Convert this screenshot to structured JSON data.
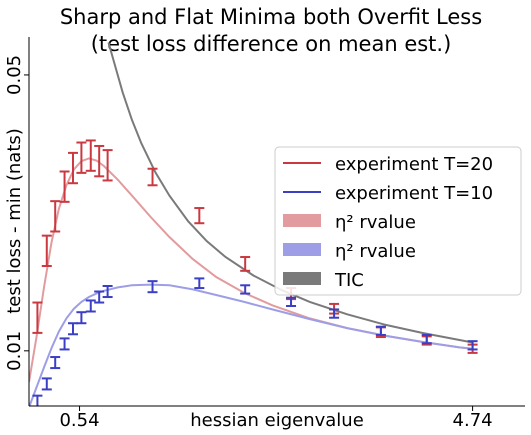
{
  "chart_data": {
    "type": "line",
    "title": "Sharp and Flat Minima both Overfit Less",
    "subtitle": "(test loss difference on mean est.)",
    "xlabel": "hessian eigenvalue",
    "ylabel": "test loss - min (nats)",
    "xlim": [
      0.0,
      5.3
    ],
    "ylim": [
      0.002,
      0.0555
    ],
    "x_ticks": [
      {
        "value": 0.54,
        "label": "0.54"
      },
      {
        "value": 4.74,
        "label": "4.74"
      }
    ],
    "y_ticks": [
      {
        "value": 0.01,
        "label": "0.01"
      },
      {
        "value": 0.05,
        "label": "0.05"
      }
    ],
    "grid": false,
    "legend_position": "center-right",
    "legend": [
      {
        "label": "experiment T=20",
        "kind": "line",
        "color": "#c9393f"
      },
      {
        "label": "experiment T=10",
        "kind": "line",
        "color": "#3b3fc4"
      },
      {
        "label": "η² rvalue",
        "kind": "patch",
        "color": "#e29b9e"
      },
      {
        "label": "η² rvalue",
        "kind": "patch",
        "color": "#9d9ee6"
      },
      {
        "label": "TIC",
        "kind": "patch",
        "color": "#7a7a7a"
      }
    ],
    "series": [
      {
        "name": "experiment T=20",
        "kind": "errorbar",
        "color": "#c9393f",
        "x": [
          0.09,
          0.19,
          0.28,
          0.38,
          0.47,
          0.56,
          0.66,
          0.75,
          0.84,
          1.32,
          1.82,
          2.31,
          2.8,
          3.26,
          3.76,
          4.25,
          4.74
        ],
        "y": [
          0.0148,
          0.0245,
          0.0295,
          0.0338,
          0.0365,
          0.038,
          0.0383,
          0.0375,
          0.0369,
          0.0352,
          0.0296,
          0.0226,
          0.0183,
          0.0161,
          0.0127,
          0.0115,
          0.0103
        ],
        "err": [
          0.0022,
          0.0022,
          0.0022,
          0.0022,
          0.0022,
          0.0022,
          0.0022,
          0.0022,
          0.0022,
          0.0012,
          0.0011,
          0.001,
          0.0008,
          0.0007,
          0.0007,
          0.0006,
          0.0006
        ]
      },
      {
        "name": "experiment T=10",
        "kind": "errorbar",
        "color": "#3b3fc4",
        "x": [
          0.09,
          0.19,
          0.28,
          0.38,
          0.47,
          0.56,
          0.66,
          0.75,
          0.84,
          1.32,
          1.82,
          2.31,
          2.8,
          3.26,
          3.76,
          4.25,
          4.74
        ],
        "y": [
          0.0027,
          0.0052,
          0.0083,
          0.011,
          0.0132,
          0.0148,
          0.0165,
          0.0178,
          0.0186,
          0.0193,
          0.0198,
          0.0189,
          0.0171,
          0.0154,
          0.0129,
          0.0117,
          0.0108
        ],
        "err": [
          0.0008,
          0.0008,
          0.0008,
          0.0008,
          0.0008,
          0.0008,
          0.0008,
          0.0008,
          0.0008,
          0.0008,
          0.0007,
          0.0006,
          0.0006,
          0.0006,
          0.0006,
          0.0006,
          0.0006
        ]
      },
      {
        "name": "η² rvalue",
        "kind": "curve",
        "color": "#e29b9e",
        "x": [
          0.0,
          0.08,
          0.16,
          0.24,
          0.32,
          0.4,
          0.48,
          0.56,
          0.64,
          0.72,
          0.8,
          0.95,
          1.1,
          1.3,
          1.5,
          1.75,
          2.0,
          2.3,
          2.6,
          3.0,
          3.4,
          3.8,
          4.2,
          4.6,
          4.74
        ],
        "y": [
          0.0055,
          0.012,
          0.0192,
          0.0257,
          0.0306,
          0.034,
          0.0363,
          0.0375,
          0.0379,
          0.0376,
          0.0368,
          0.0348,
          0.0325,
          0.0294,
          0.0265,
          0.0233,
          0.0207,
          0.0184,
          0.0166,
          0.0147,
          0.0133,
          0.0122,
          0.0113,
          0.0105,
          0.0103
        ]
      },
      {
        "name": "η² rvalue",
        "kind": "curve",
        "color": "#9d9ee6",
        "x": [
          0.0,
          0.08,
          0.16,
          0.24,
          0.32,
          0.4,
          0.48,
          0.56,
          0.64,
          0.72,
          0.8,
          0.95,
          1.1,
          1.3,
          1.5,
          1.75,
          2.0,
          2.3,
          2.6,
          3.0,
          3.4,
          3.8,
          4.2,
          4.6,
          4.74
        ],
        "y": [
          0.0018,
          0.0047,
          0.0076,
          0.0104,
          0.0128,
          0.0147,
          0.0161,
          0.0171,
          0.0178,
          0.0183,
          0.0187,
          0.0192,
          0.0195,
          0.0196,
          0.0195,
          0.0189,
          0.0181,
          0.0171,
          0.016,
          0.0146,
          0.0133,
          0.0122,
          0.0113,
          0.0105,
          0.0103
        ]
      },
      {
        "name": "TIC",
        "kind": "curve",
        "color": "#7a7a7a",
        "x": [
          0.85,
          0.9,
          1.0,
          1.1,
          1.2,
          1.35,
          1.5,
          1.7,
          1.9,
          2.1,
          2.4,
          2.7,
          3.0,
          3.4,
          3.8,
          4.2,
          4.74
        ],
        "y": [
          0.0547,
          0.0523,
          0.0475,
          0.0435,
          0.0401,
          0.0359,
          0.0325,
          0.0288,
          0.0259,
          0.0236,
          0.0209,
          0.0188,
          0.0171,
          0.0153,
          0.0138,
          0.0126,
          0.0112
        ]
      }
    ]
  }
}
